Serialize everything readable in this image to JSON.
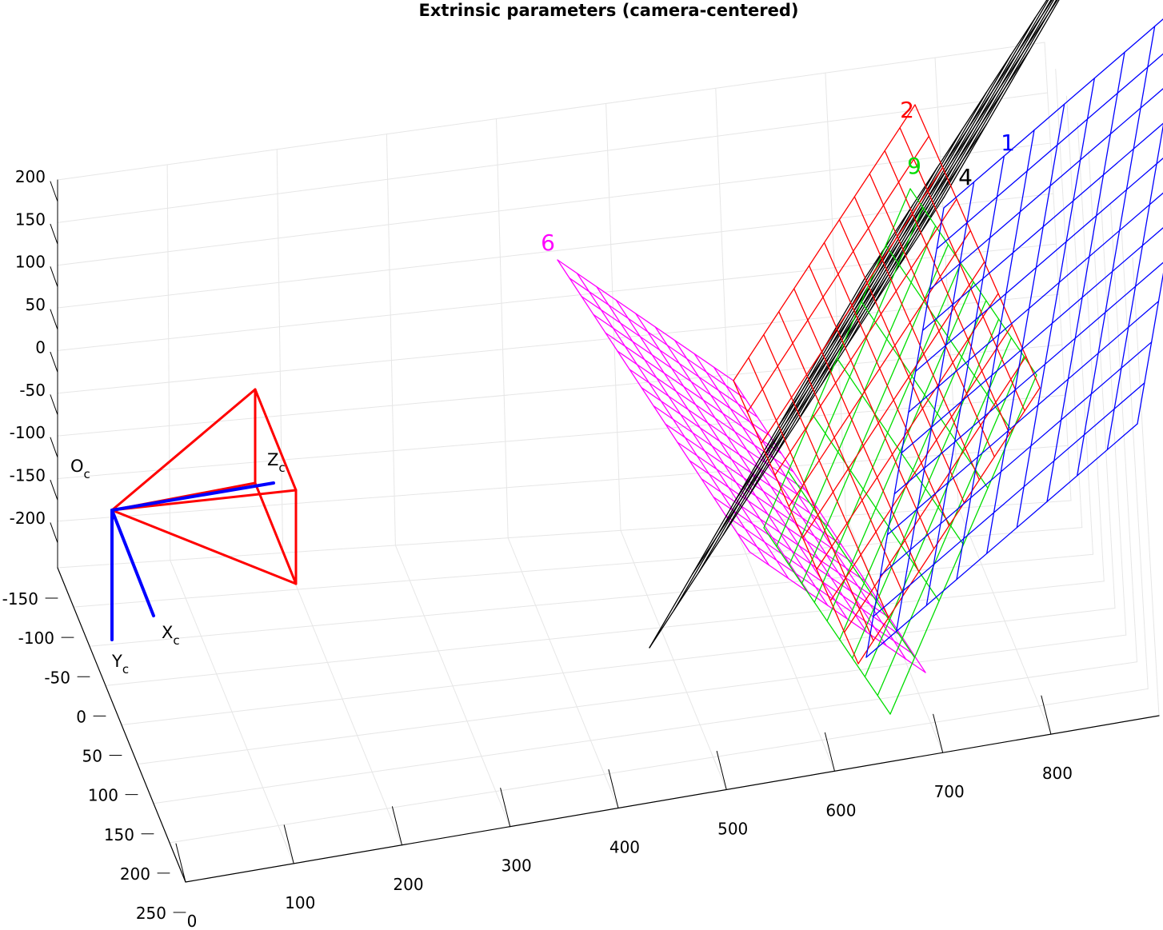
{
  "chart_data": {
    "type": "scatter",
    "subtype": "3d-camera-extrinsics",
    "title": "Extrinsic parameters (camera-centered)",
    "xlabel": "",
    "ylabel": "",
    "zlabel": "",
    "grid": true,
    "axes": {
      "x": {
        "ticks": [
          "0",
          "100",
          "200",
          "300",
          "400",
          "500",
          "600",
          "700",
          "800"
        ]
      },
      "y": {
        "ticks": [
          "-150",
          "-100",
          "-50",
          "0",
          "50",
          "100",
          "150",
          "200",
          "250"
        ]
      },
      "z": {
        "ticks": [
          "200",
          "150",
          "100",
          "50",
          "0",
          "-50",
          "-100",
          "-150",
          "-200"
        ]
      }
    },
    "camera": {
      "origin_label": "O",
      "origin_sub": "c",
      "axes_labels": [
        {
          "name": "X",
          "sub": "c"
        },
        {
          "name": "Y",
          "sub": "c"
        },
        {
          "name": "Z",
          "sub": "c"
        }
      ],
      "frustum_color": "#ff0000",
      "axis_color": "#0000ff"
    },
    "series": [
      {
        "name": "6",
        "color": "#ff00ff"
      },
      {
        "name": "4",
        "color": "#000000"
      },
      {
        "name": "9",
        "color": "#00dd00"
      },
      {
        "name": "2",
        "color": "#ff0000"
      },
      {
        "name": "1",
        "color": "#0000ff"
      }
    ]
  }
}
